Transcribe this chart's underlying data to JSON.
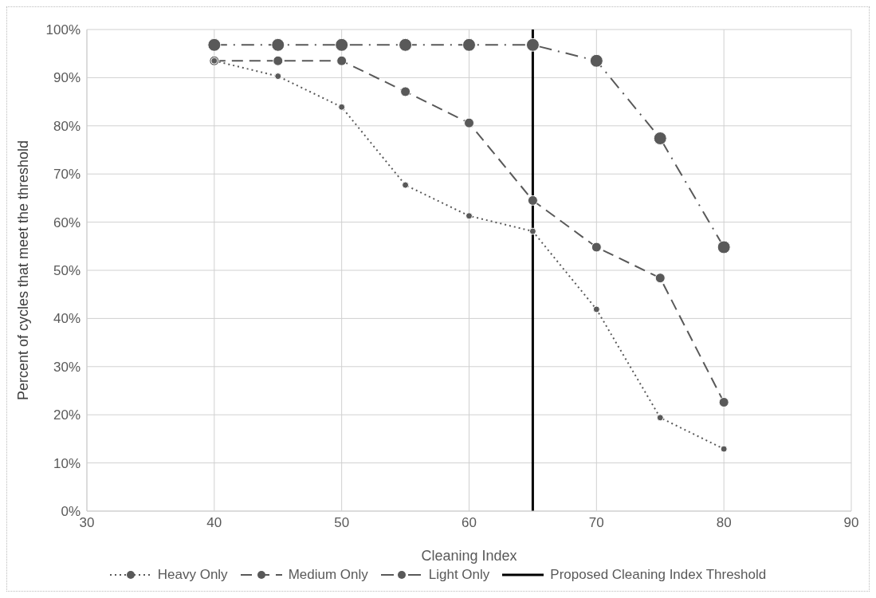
{
  "chart_data": {
    "type": "line",
    "xlabel": "Cleaning Index",
    "ylabel": "Percent of cycles that meet the threshold",
    "x": [
      40,
      45,
      50,
      55,
      60,
      65,
      70,
      75,
      80
    ],
    "series": [
      {
        "name": "Heavy Only",
        "color": "#595959",
        "line_style": "dotted",
        "values": [
          93.5,
          90.3,
          83.9,
          67.7,
          61.3,
          58.1,
          41.9,
          19.4,
          12.9
        ]
      },
      {
        "name": "Medium Only",
        "color": "#595959",
        "line_style": "dashed",
        "values": [
          93.5,
          93.5,
          93.5,
          87.1,
          80.6,
          64.5,
          54.8,
          48.4,
          22.6
        ]
      },
      {
        "name": "Light Only",
        "color": "#595959",
        "line_style": "dashdot",
        "values": [
          96.8,
          96.8,
          96.8,
          96.8,
          96.8,
          96.8,
          93.5,
          77.4,
          54.8
        ]
      }
    ],
    "ref_lines": [
      {
        "axis": "x",
        "value": 65,
        "label": "Proposed Cleaning Index Threshold",
        "color": "#000000",
        "line_style": "solid"
      }
    ],
    "xlim": [
      30,
      90
    ],
    "xticks": [
      30,
      40,
      50,
      60,
      70,
      80,
      90
    ],
    "ylim": [
      0,
      100
    ],
    "yticks": [
      {
        "value": 0,
        "label": "0%"
      },
      {
        "value": 10,
        "label": "10%"
      },
      {
        "value": 20,
        "label": "20%"
      },
      {
        "value": 30,
        "label": "30%"
      },
      {
        "value": 40,
        "label": "40%"
      },
      {
        "value": 50,
        "label": "50%"
      },
      {
        "value": 60,
        "label": "60%"
      },
      {
        "value": 70,
        "label": "70%"
      },
      {
        "value": 80,
        "label": "80%"
      },
      {
        "value": 90,
        "label": "90%"
      },
      {
        "value": 100,
        "label": "100%"
      }
    ],
    "grid": true,
    "legend": "bottom",
    "marker": "circle"
  }
}
